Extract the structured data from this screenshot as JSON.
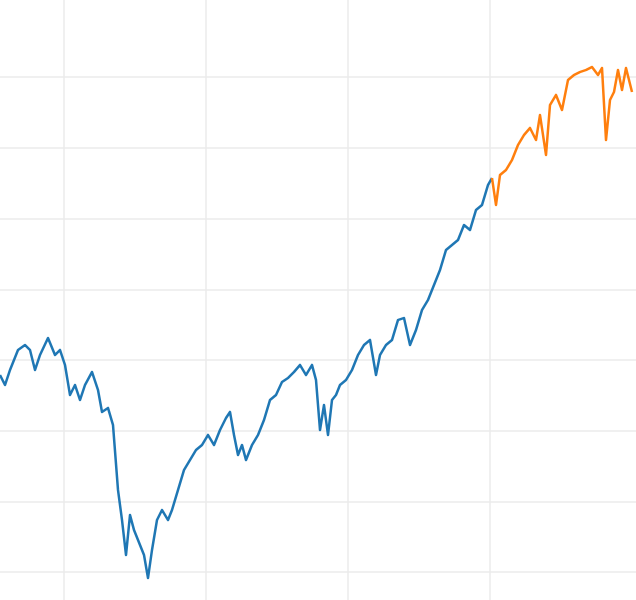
{
  "chart_data": {
    "type": "line",
    "grid": true,
    "xlim": [
      0,
      636
    ],
    "xticks": [
      64,
      206,
      348,
      490
    ],
    "ylim": [
      0,
      600
    ],
    "yticks": [
      28,
      98,
      169,
      240,
      310,
      381,
      452,
      523
    ],
    "series": [
      {
        "color": "#1f77b4",
        "x": [
          0,
          5,
          10,
          18,
          25,
          30,
          35,
          40,
          48,
          55,
          60,
          65,
          70,
          75,
          80,
          85,
          92,
          98,
          102,
          108,
          113,
          118,
          122,
          126,
          130,
          134,
          140,
          144,
          148,
          152,
          157,
          162,
          168,
          172,
          178,
          184,
          190,
          196,
          202,
          208,
          214,
          220,
          226,
          230,
          234,
          238,
          242,
          246,
          252,
          258,
          264,
          270,
          276,
          282,
          288,
          294,
          300,
          306,
          312,
          316,
          320,
          324,
          328,
          332,
          336,
          340,
          346,
          352,
          358,
          364,
          370,
          376,
          380,
          386,
          392,
          398,
          404,
          410,
          416,
          422,
          428,
          434,
          440,
          446,
          452,
          458,
          464,
          470,
          476,
          482,
          488,
          492
        ],
        "values": [
          225,
          215,
          230,
          250,
          255,
          250,
          230,
          245,
          262,
          245,
          250,
          235,
          205,
          215,
          200,
          215,
          228,
          210,
          188,
          192,
          175,
          110,
          80,
          45,
          85,
          70,
          55,
          45,
          22,
          50,
          80,
          90,
          80,
          90,
          110,
          130,
          140,
          150,
          155,
          165,
          155,
          170,
          182,
          188,
          165,
          145,
          155,
          140,
          155,
          165,
          180,
          200,
          205,
          218,
          222,
          228,
          235,
          225,
          235,
          220,
          170,
          195,
          165,
          200,
          205,
          215,
          220,
          230,
          245,
          255,
          260,
          225,
          245,
          255,
          260,
          280,
          282,
          255,
          270,
          290,
          300,
          315,
          330,
          350,
          355,
          360,
          375,
          370,
          390,
          395,
          415,
          422
        ]
      },
      {
        "color": "#ff7f0e",
        "x": [
          492,
          496,
          500,
          506,
          512,
          518,
          524,
          530,
          536,
          540,
          546,
          550,
          556,
          562,
          568,
          574,
          580,
          586,
          592,
          598,
          602,
          606,
          610,
          614,
          618,
          622,
          626,
          632
        ],
        "values": [
          422,
          395,
          425,
          430,
          440,
          455,
          465,
          472,
          460,
          485,
          445,
          495,
          505,
          490,
          520,
          525,
          528,
          530,
          533,
          525,
          532,
          460,
          500,
          508,
          530,
          510,
          532,
          508
        ]
      }
    ]
  }
}
